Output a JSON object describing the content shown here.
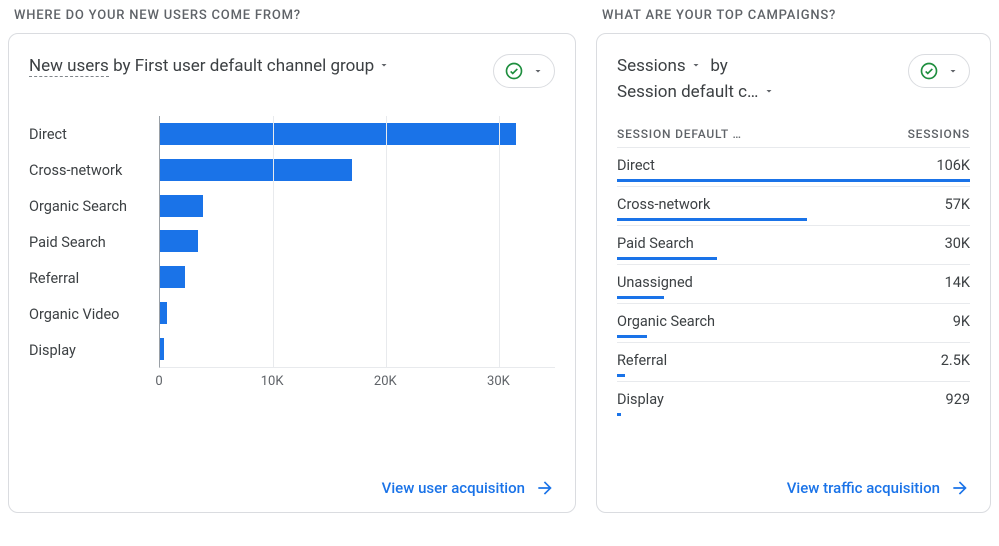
{
  "colors": {
    "bar": "#1a73e8",
    "link": "#1a73e8",
    "grid": "#e8eaed",
    "axis": "#9aa0a6",
    "text": "#3c4043",
    "muted": "#5f6368",
    "border": "#dadce0",
    "check": "#1e8e3e"
  },
  "left": {
    "section_title": "WHERE DO YOUR NEW USERS COME FROM?",
    "picker": {
      "metric": "New users",
      "by": "by",
      "dimension": "First user default channel group"
    },
    "chart": {
      "type": "bar-horizontal",
      "x_max": 35000,
      "x_ticks": [
        {
          "value": 0,
          "label": "0"
        },
        {
          "value": 10000,
          "label": "10K"
        },
        {
          "value": 20000,
          "label": "20K"
        },
        {
          "value": 30000,
          "label": "30K"
        }
      ],
      "bars": [
        {
          "label": "Direct",
          "value": 31500
        },
        {
          "label": "Cross-network",
          "value": 17000
        },
        {
          "label": "Organic Search",
          "value": 3800
        },
        {
          "label": "Paid Search",
          "value": 3400
        },
        {
          "label": "Referral",
          "value": 2200
        },
        {
          "label": "Organic Video",
          "value": 600
        },
        {
          "label": "Display",
          "value": 350
        }
      ]
    },
    "footer_link": "View user acquisition"
  },
  "right": {
    "section_title": "WHAT ARE YOUR TOP CAMPAIGNS?",
    "picker": {
      "metric": "Sessions",
      "by": "by",
      "dimension": "Session default c…"
    },
    "table": {
      "col1": "SESSION DEFAULT …",
      "col2": "SESSIONS",
      "max_spark": 106000,
      "rows": [
        {
          "label": "Direct",
          "display": "106K",
          "value": 106000
        },
        {
          "label": "Cross-network",
          "display": "57K",
          "value": 57000
        },
        {
          "label": "Paid Search",
          "display": "30K",
          "value": 30000
        },
        {
          "label": "Unassigned",
          "display": "14K",
          "value": 14000
        },
        {
          "label": "Organic Search",
          "display": "9K",
          "value": 9000
        },
        {
          "label": "Referral",
          "display": "2.5K",
          "value": 2500
        },
        {
          "label": "Display",
          "display": "929",
          "value": 929
        }
      ]
    },
    "footer_link": "View traffic acquisition"
  }
}
